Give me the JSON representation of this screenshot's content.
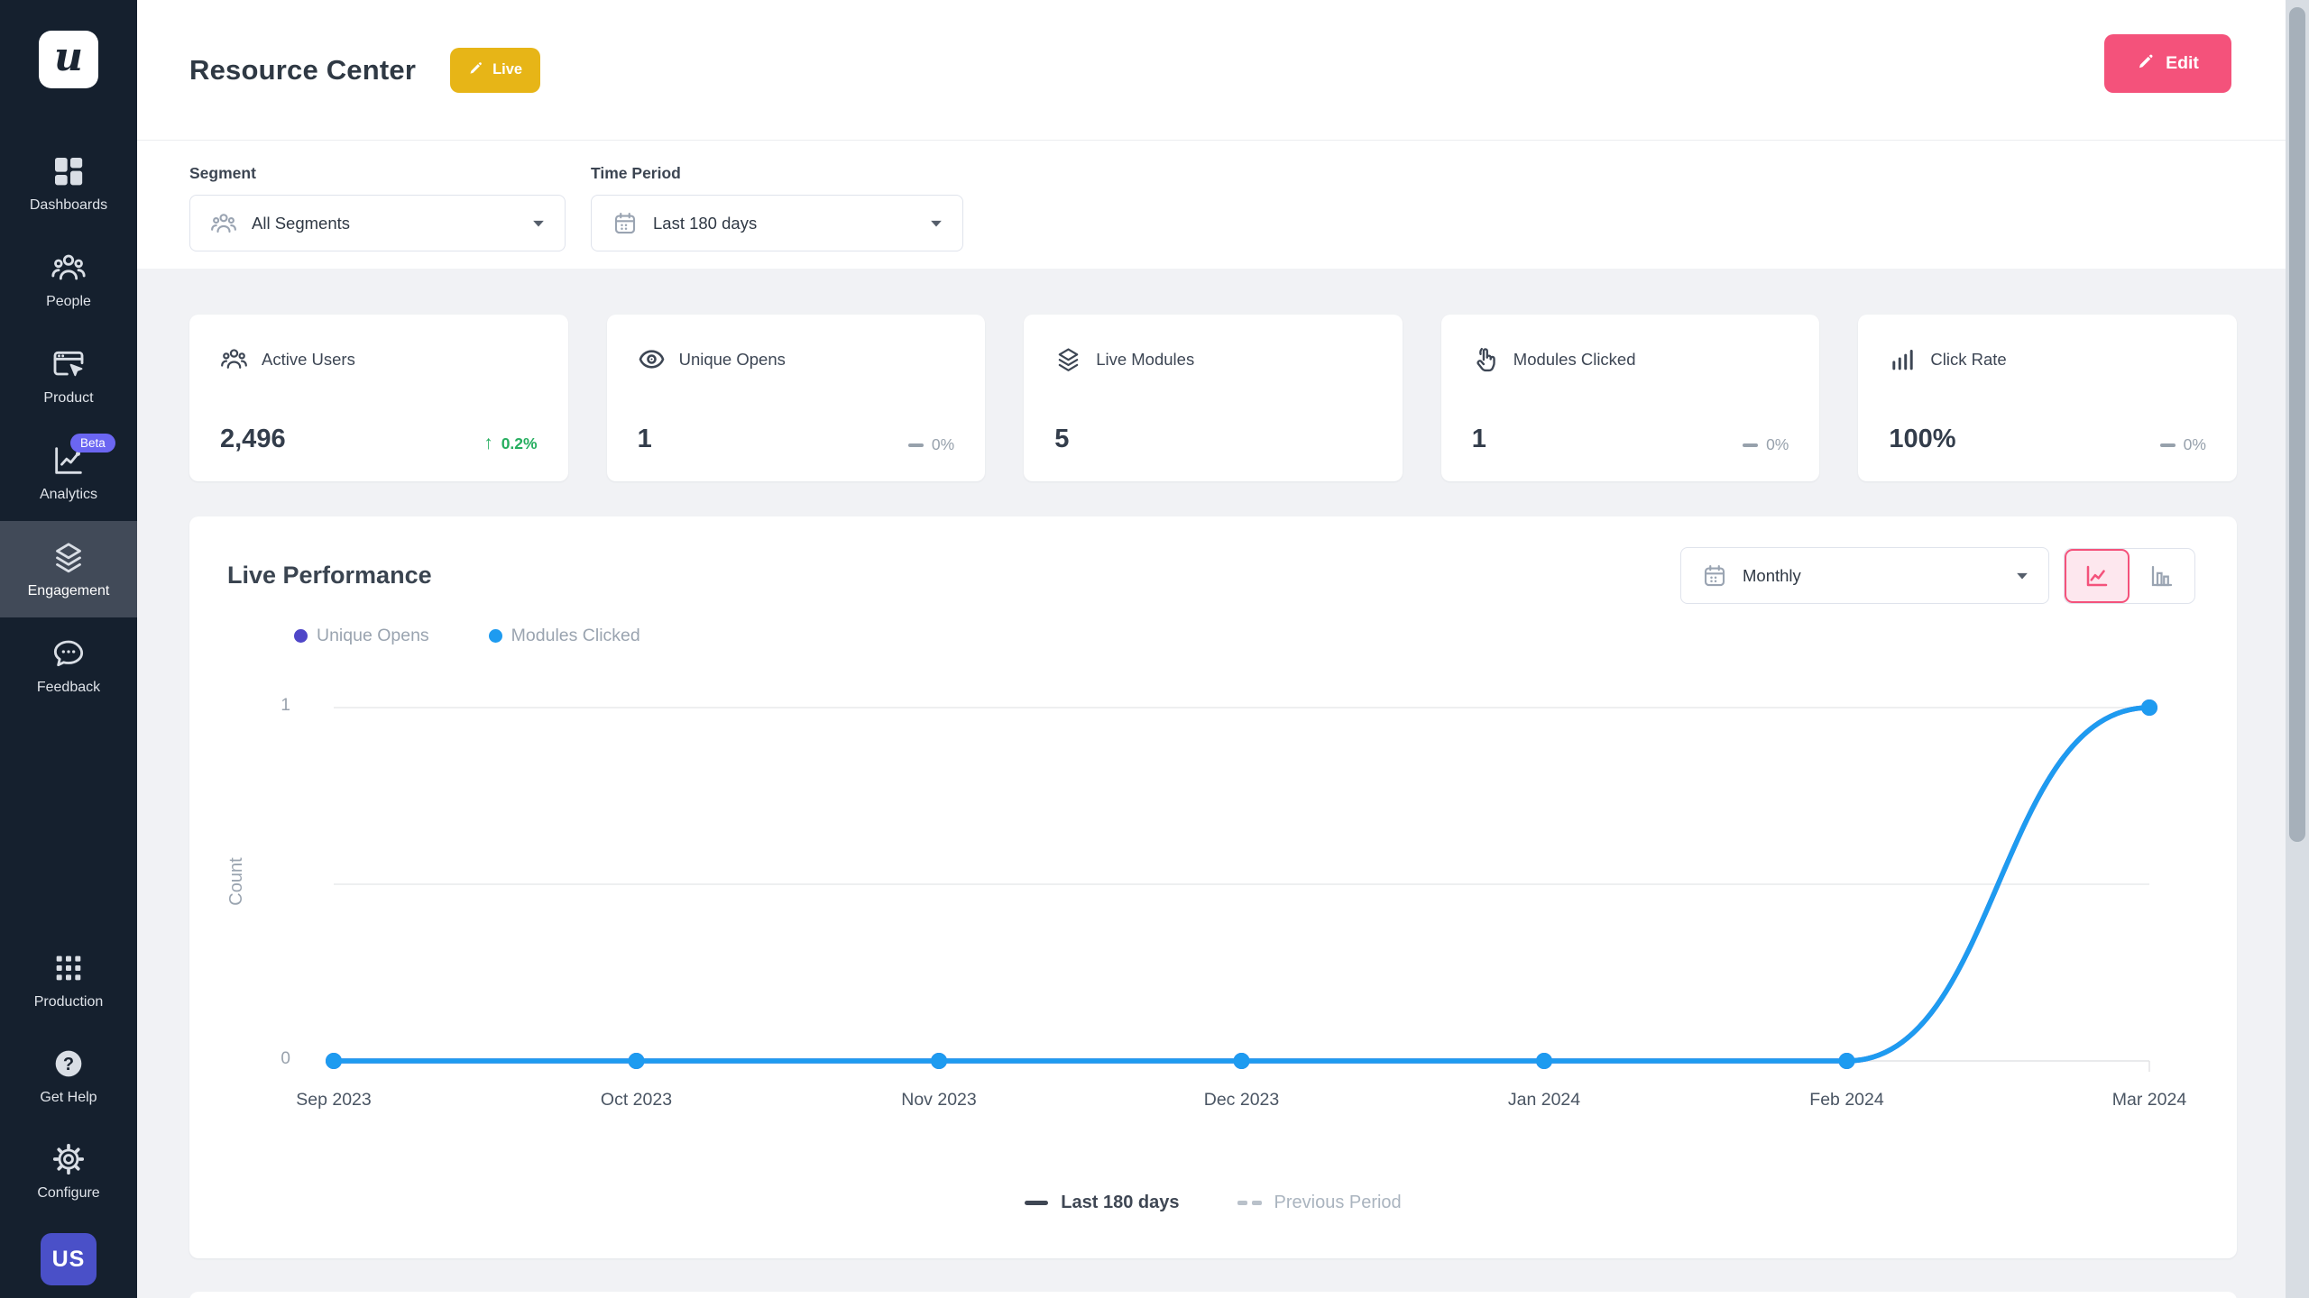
{
  "colors": {
    "sidebar_bg": "#15202e",
    "accent_pink": "#f4527b",
    "live_yellow": "#e7b517",
    "beta_purple": "#6b66f2",
    "avatar_indigo": "#4a50c8",
    "series_purple": "#4f46c8",
    "series_blue": "#1e9bf0",
    "positive_green": "#27ae60",
    "page_bg": "#f1f2f5"
  },
  "sidebar": {
    "logo_letter": "u",
    "items": [
      {
        "label": "Dashboards",
        "icon": "dashboard-grid-icon",
        "active": false
      },
      {
        "label": "People",
        "icon": "people-icon",
        "active": false
      },
      {
        "label": "Product",
        "icon": "product-window-icon",
        "active": false
      },
      {
        "label": "Analytics",
        "icon": "analytics-chart-icon",
        "badge": "Beta",
        "active": false
      },
      {
        "label": "Engagement",
        "icon": "layers-icon",
        "active": true
      },
      {
        "label": "Feedback",
        "icon": "feedback-bubble-icon",
        "active": false
      }
    ],
    "bottom_items": [
      {
        "label": "Production",
        "icon": "grid-dots-icon"
      },
      {
        "label": "Get Help",
        "icon": "help-circle-icon"
      },
      {
        "label": "Configure",
        "icon": "gear-icon"
      }
    ],
    "avatar": "US"
  },
  "header": {
    "title": "Resource Center",
    "status_badge": "Live",
    "edit_button": "Edit"
  },
  "filters": {
    "segment": {
      "label": "Segment",
      "value": "All Segments",
      "icon": "people-icon"
    },
    "time_period": {
      "label": "Time Period",
      "value": "Last 180 days",
      "icon": "calendar-icon"
    }
  },
  "stats": [
    {
      "title": "Active Users",
      "icon": "people-icon",
      "value": "2,496",
      "delta": "0.2%",
      "delta_direction": "up"
    },
    {
      "title": "Unique Opens",
      "icon": "eye-icon",
      "value": "1",
      "delta": "0%",
      "delta_direction": "flat"
    },
    {
      "title": "Live Modules",
      "icon": "layers-icon",
      "value": "5"
    },
    {
      "title": "Modules Clicked",
      "icon": "click-hand-icon",
      "value": "1",
      "delta": "0%",
      "delta_direction": "flat"
    },
    {
      "title": "Click Rate",
      "icon": "bar-chart-icon",
      "value": "100%",
      "delta": "0%",
      "delta_direction": "flat"
    }
  ],
  "chart_section": {
    "title": "Live Performance",
    "interval_dropdown": {
      "value": "Monthly",
      "icon": "calendar-icon"
    },
    "chart_type_toggle": [
      {
        "name": "line-chart-toggle",
        "icon": "line-chart-icon",
        "active": true
      },
      {
        "name": "bar-chart-toggle",
        "icon": "bar-chart-toggle-icon",
        "active": false
      }
    ],
    "series_legend": [
      {
        "label": "Unique Opens",
        "color": "#4f46c8"
      },
      {
        "label": "Modules Clicked",
        "color": "#1e9bf0"
      }
    ],
    "bottom_legend": [
      {
        "label": "Last 180 days",
        "style": "solid"
      },
      {
        "label": "Previous Period",
        "style": "dashed"
      }
    ]
  },
  "chart_data": {
    "type": "line",
    "title": "Live Performance",
    "categories": [
      "Sep 2023",
      "Oct 2023",
      "Nov 2023",
      "Dec 2023",
      "Jan 2024",
      "Feb 2024",
      "Mar 2024"
    ],
    "series": [
      {
        "name": "Unique Opens",
        "color": "#4f46c8",
        "values": [
          0,
          0,
          0,
          0,
          0,
          0,
          1
        ]
      },
      {
        "name": "Modules Clicked",
        "color": "#1e9bf0",
        "values": [
          0,
          0,
          0,
          0,
          0,
          0,
          1
        ]
      }
    ],
    "xlabel": "",
    "ylabel": "Count",
    "ylim": [
      0,
      1
    ],
    "yticks": [
      0,
      1
    ],
    "gridlines": [
      0,
      0.5,
      1
    ],
    "legend_position": "top-left",
    "grid": true
  }
}
